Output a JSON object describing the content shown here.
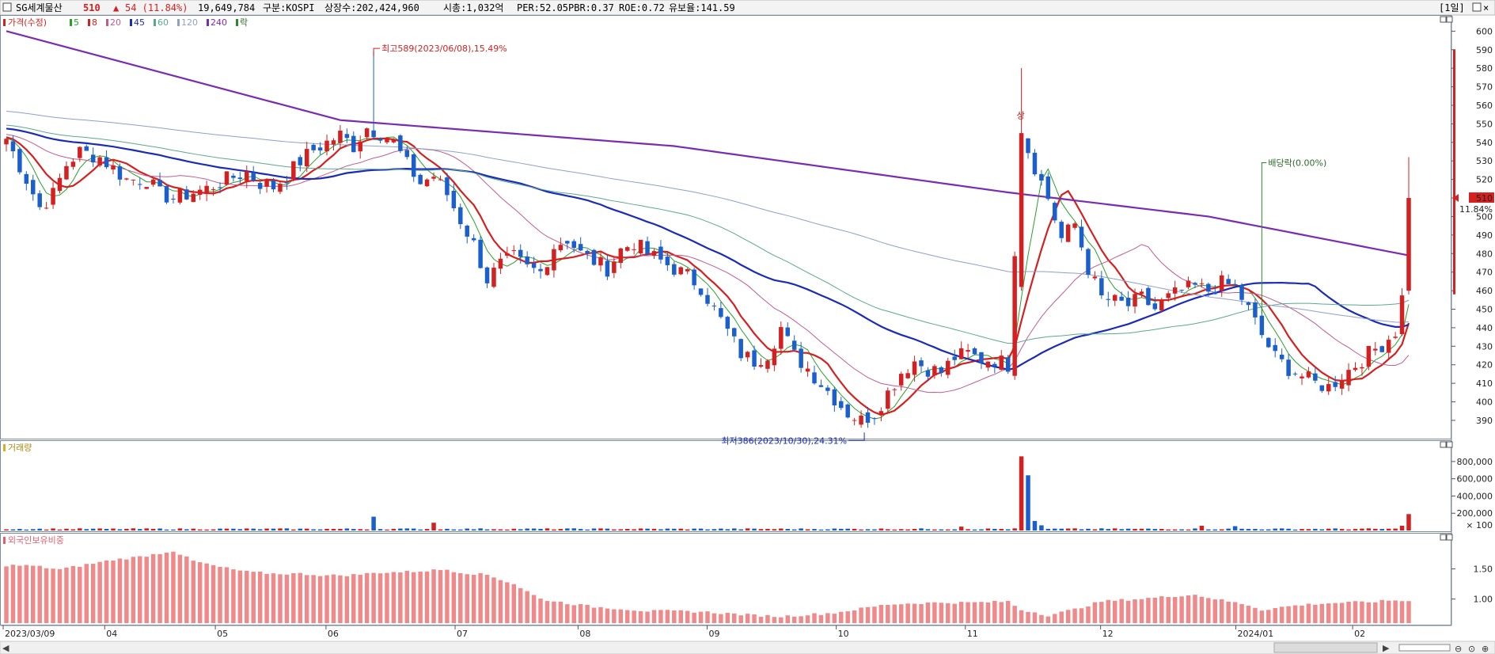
{
  "header": {
    "name": "SG세계물산",
    "price": "510",
    "change_arrow": "▲",
    "change": "54 (11.84%)",
    "volume": "19,649,784",
    "market": "구분:KOSPI",
    "shares": "상장수:202,424,960",
    "mcap": "시총:1,032억",
    "per": "PER:52.05",
    "pbr": "PBR:0.37",
    "roe": "ROE:0.72",
    "float": "유보율:141.59",
    "period_button": "[1일]",
    "colors": {
      "up": "#d42020",
      "down": "#1a5fcc"
    }
  },
  "legend": {
    "price_label": "가격(수정)",
    "ma_labels": [
      "5",
      "8",
      "20",
      "45",
      "60",
      "120",
      "240"
    ],
    "extra_label": "락",
    "volume_label": "거래량",
    "foreign_label": "외국인보유비중"
  },
  "annotations": {
    "high": "최고589(2023/06/08),15.49%",
    "low": "최저386(2023/10/30),24.31%",
    "dividend": "배당락(0.00%)",
    "upper_limit": "상",
    "current_price": "510",
    "current_pct": "11.84%"
  },
  "chart_data": [
    {
      "type": "candlestick",
      "title": "",
      "y_ticks": [
        390,
        400,
        410,
        420,
        430,
        440,
        450,
        460,
        470,
        480,
        490,
        500,
        510,
        520,
        530,
        540,
        550,
        560,
        570,
        580,
        590,
        600
      ],
      "ylim": [
        381,
        604
      ],
      "x_ticks": [
        "2023/03/09",
        "04",
        "05",
        "06",
        "07",
        "08",
        "09",
        "10",
        "11",
        "12",
        "2024/01",
        "02"
      ],
      "anchors": [
        [
          0,
          542
        ],
        [
          3,
          520
        ],
        [
          5,
          505
        ],
        [
          7,
          512
        ],
        [
          9,
          528
        ],
        [
          11,
          535
        ],
        [
          14,
          532
        ],
        [
          16,
          526
        ],
        [
          18,
          520
        ],
        [
          21,
          520
        ],
        [
          23,
          512
        ],
        [
          25,
          510
        ],
        [
          27,
          512
        ],
        [
          30,
          515
        ],
        [
          33,
          520
        ],
        [
          36,
          524
        ],
        [
          38,
          518
        ],
        [
          40,
          516
        ],
        [
          42,
          522
        ],
        [
          44,
          530
        ],
        [
          46,
          536
        ],
        [
          48,
          540
        ],
        [
          50,
          544
        ],
        [
          52,
          538
        ],
        [
          54,
          548
        ],
        [
          56,
          545
        ],
        [
          58,
          540
        ],
        [
          60,
          528
        ],
        [
          62,
          518
        ],
        [
          64,
          522
        ],
        [
          66,
          512
        ],
        [
          68,
          498
        ],
        [
          70,
          485
        ],
        [
          72,
          466
        ],
        [
          74,
          474
        ],
        [
          76,
          478
        ],
        [
          78,
          472
        ],
        [
          80,
          470
        ],
        [
          82,
          484
        ],
        [
          84,
          488
        ],
        [
          86,
          480
        ],
        [
          88,
          476
        ],
        [
          90,
          472
        ],
        [
          92,
          482
        ],
        [
          94,
          486
        ],
        [
          96,
          480
        ],
        [
          98,
          476
        ],
        [
          100,
          472
        ],
        [
          102,
          468
        ],
        [
          104,
          462
        ],
        [
          106,
          450
        ],
        [
          108,
          438
        ],
        [
          110,
          426
        ],
        [
          112,
          422
        ],
        [
          114,
          426
        ],
        [
          116,
          440
        ],
        [
          118,
          425
        ],
        [
          120,
          418
        ],
        [
          122,
          410
        ],
        [
          124,
          402
        ],
        [
          126,
          394
        ],
        [
          128,
          390
        ],
        [
          130,
          394
        ],
        [
          132,
          405
        ],
        [
          134,
          416
        ],
        [
          136,
          422
        ],
        [
          138,
          418
        ],
        [
          140,
          416
        ],
        [
          142,
          424
        ],
        [
          144,
          426
        ],
        [
          146,
          423
        ],
        [
          148,
          423
        ],
        [
          150,
          420
        ],
        [
          152,
          545
        ],
        [
          154,
          527
        ],
        [
          156,
          510
        ],
        [
          158,
          488
        ],
        [
          160,
          496
        ],
        [
          162,
          472
        ],
        [
          164,
          456
        ],
        [
          166,
          454
        ],
        [
          168,
          452
        ],
        [
          170,
          456
        ],
        [
          172,
          450
        ],
        [
          174,
          456
        ],
        [
          176,
          460
        ],
        [
          178,
          462
        ],
        [
          180,
          460
        ],
        [
          182,
          464
        ],
        [
          184,
          462
        ],
        [
          186,
          450
        ],
        [
          188,
          436
        ],
        [
          190,
          424
        ],
        [
          192,
          418
        ],
        [
          194,
          414
        ],
        [
          196,
          410
        ],
        [
          198,
          408
        ],
        [
          200,
          414
        ],
        [
          202,
          420
        ],
        [
          204,
          426
        ],
        [
          206,
          431
        ],
        [
          208,
          438
        ],
        [
          209,
          456
        ],
        [
          210,
          510
        ]
      ],
      "high_event": {
        "index": 55,
        "value": 589
      },
      "low_event": {
        "index": 128,
        "value": 386
      },
      "dividend_index": 188,
      "upper_limit_index": 152,
      "last": {
        "open": 460,
        "high": 532,
        "low": 458,
        "close": 510
      },
      "moving_averages": [
        {
          "name": "5",
          "period": 5,
          "color": "#2aa02a"
        },
        {
          "name": "8",
          "period": 8,
          "color": "#d42020"
        },
        {
          "name": "20",
          "period": 20,
          "color": "#c05c8c"
        },
        {
          "name": "45",
          "period": 45,
          "color": "#1a2bb5"
        },
        {
          "name": "60",
          "period": 60,
          "color": "#5aa891"
        },
        {
          "name": "120",
          "period": 120,
          "color": "#8ea0c8"
        },
        {
          "name": "240",
          "period": 240,
          "color": "#7a2bb0"
        }
      ],
      "ma240_path": [
        [
          0,
          600
        ],
        [
          50,
          552
        ],
        [
          100,
          538
        ],
        [
          150,
          513
        ],
        [
          180,
          500
        ],
        [
          210,
          479
        ]
      ]
    },
    {
      "type": "bar",
      "title": "",
      "y_ticks": [
        200000,
        400000,
        600000,
        800000
      ],
      "y_tick_labels": [
        "200,000",
        "400,000",
        "600,000",
        "800,000"
      ],
      "unit_label": "× 100",
      "ylim": [
        0,
        900000
      ],
      "base_volume": 18000,
      "spikes": [
        [
          55,
          160000
        ],
        [
          64,
          90000
        ],
        [
          143,
          45000
        ],
        [
          152,
          860000
        ],
        [
          153,
          640000
        ],
        [
          154,
          110000
        ],
        [
          155,
          60000
        ],
        [
          179,
          55000
        ],
        [
          184,
          50000
        ],
        [
          209,
          55000
        ],
        [
          210,
          190000
        ]
      ]
    },
    {
      "type": "bar",
      "title": "",
      "y_ticks": [
        1.0,
        1.5
      ],
      "y_tick_labels": [
        "1.00",
        "1.50"
      ],
      "ylim": [
        0.6,
        1.9
      ],
      "anchors": [
        [
          0,
          1.56
        ],
        [
          4,
          1.55
        ],
        [
          8,
          1.49
        ],
        [
          12,
          1.57
        ],
        [
          16,
          1.65
        ],
        [
          20,
          1.7
        ],
        [
          24,
          1.78
        ],
        [
          25,
          1.8
        ],
        [
          28,
          1.63
        ],
        [
          32,
          1.53
        ],
        [
          36,
          1.45
        ],
        [
          40,
          1.42
        ],
        [
          44,
          1.42
        ],
        [
          48,
          1.39
        ],
        [
          52,
          1.4
        ],
        [
          56,
          1.44
        ],
        [
          60,
          1.45
        ],
        [
          66,
          1.49
        ],
        [
          68,
          1.44
        ],
        [
          72,
          1.4
        ],
        [
          76,
          1.25
        ],
        [
          80,
          1.0
        ],
        [
          84,
          0.93
        ],
        [
          88,
          0.87
        ],
        [
          92,
          0.84
        ],
        [
          96,
          0.8
        ],
        [
          100,
          0.8
        ],
        [
          104,
          0.79
        ],
        [
          108,
          0.76
        ],
        [
          112,
          0.73
        ],
        [
          116,
          0.71
        ],
        [
          120,
          0.74
        ],
        [
          124,
          0.77
        ],
        [
          128,
          0.84
        ],
        [
          132,
          0.91
        ],
        [
          136,
          0.93
        ],
        [
          140,
          0.94
        ],
        [
          144,
          0.94
        ],
        [
          148,
          0.95
        ],
        [
          150,
          0.96
        ],
        [
          152,
          0.82
        ],
        [
          154,
          0.78
        ],
        [
          156,
          0.73
        ],
        [
          160,
          0.83
        ],
        [
          164,
          0.96
        ],
        [
          168,
          0.99
        ],
        [
          172,
          1.02
        ],
        [
          176,
          1.06
        ],
        [
          178,
          1.07
        ],
        [
          182,
          0.98
        ],
        [
          186,
          0.9
        ],
        [
          188,
          0.82
        ],
        [
          192,
          0.88
        ],
        [
          196,
          0.92
        ],
        [
          200,
          0.94
        ],
        [
          204,
          0.95
        ],
        [
          208,
          0.98
        ],
        [
          210,
          0.96
        ]
      ]
    }
  ]
}
